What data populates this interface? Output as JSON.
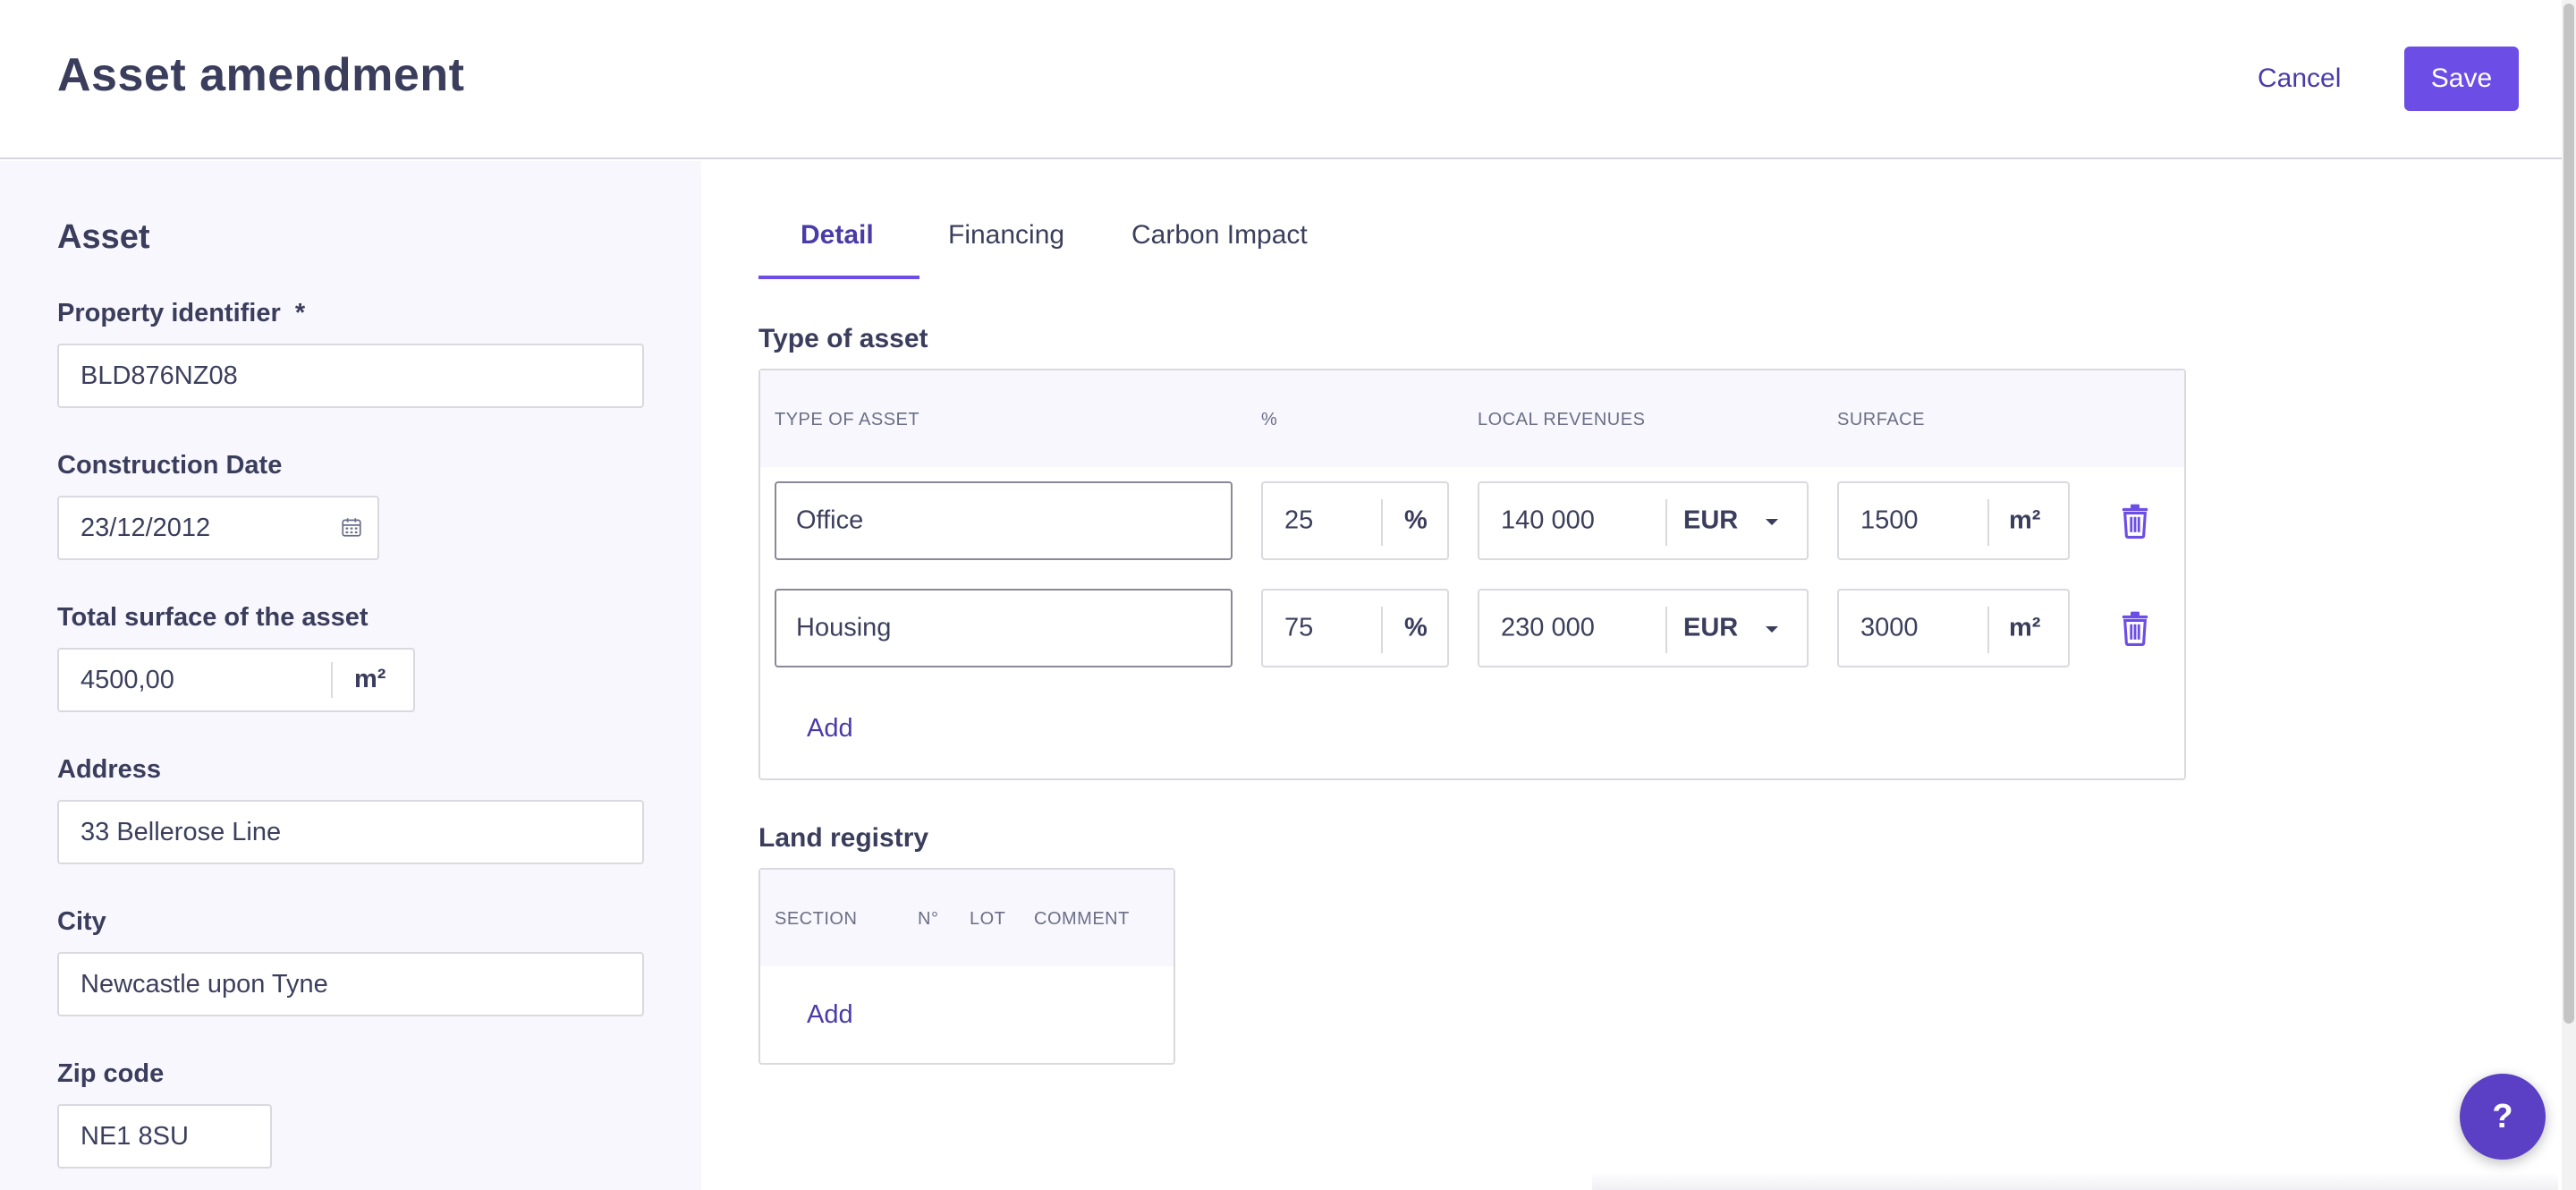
{
  "header": {
    "title": "Asset amendment",
    "cancel_label": "Cancel",
    "save_label": "Save"
  },
  "asset_panel": {
    "title": "Asset",
    "property_identifier": {
      "label": "Property identifier",
      "required_mark": "*",
      "value": "BLD876NZ08"
    },
    "construction_date": {
      "label": "Construction Date",
      "value": "23/12/2012",
      "icon": "calendar-icon"
    },
    "total_surface": {
      "label": "Total surface of the asset",
      "value": "4500,00",
      "unit": "m²"
    },
    "address": {
      "label": "Address",
      "value": "33 Bellerose Line"
    },
    "city": {
      "label": "City",
      "value": "Newcastle upon Tyne"
    },
    "zip_code": {
      "label": "Zip code",
      "value": "NE1 8SU"
    }
  },
  "tabs": [
    {
      "label": "Detail",
      "active": true
    },
    {
      "label": "Financing",
      "active": false
    },
    {
      "label": "Carbon Impact",
      "active": false
    }
  ],
  "type_of_asset": {
    "title": "Type of asset",
    "columns": [
      "TYPE OF ASSET",
      "%",
      "LOCAL REVENUES",
      "SURFACE"
    ],
    "rows": [
      {
        "type": "Office",
        "percent": "25",
        "percent_unit": "%",
        "revenue": "140 000",
        "currency": "EUR",
        "surface": "1500",
        "surface_unit": "m²"
      },
      {
        "type": "Housing",
        "percent": "75",
        "percent_unit": "%",
        "revenue": "230 000",
        "currency": "EUR",
        "surface": "3000",
        "surface_unit": "m²"
      }
    ],
    "add_label": "Add"
  },
  "land_registry": {
    "title": "Land registry",
    "columns": [
      "SECTION",
      "N°",
      "LOT",
      "COMMENT"
    ],
    "add_label": "Add"
  },
  "help": {
    "label": "?"
  },
  "colors": {
    "accent": "#6c4de6",
    "link": "#4a3ca8",
    "panel_bg": "#f8f7fd"
  }
}
